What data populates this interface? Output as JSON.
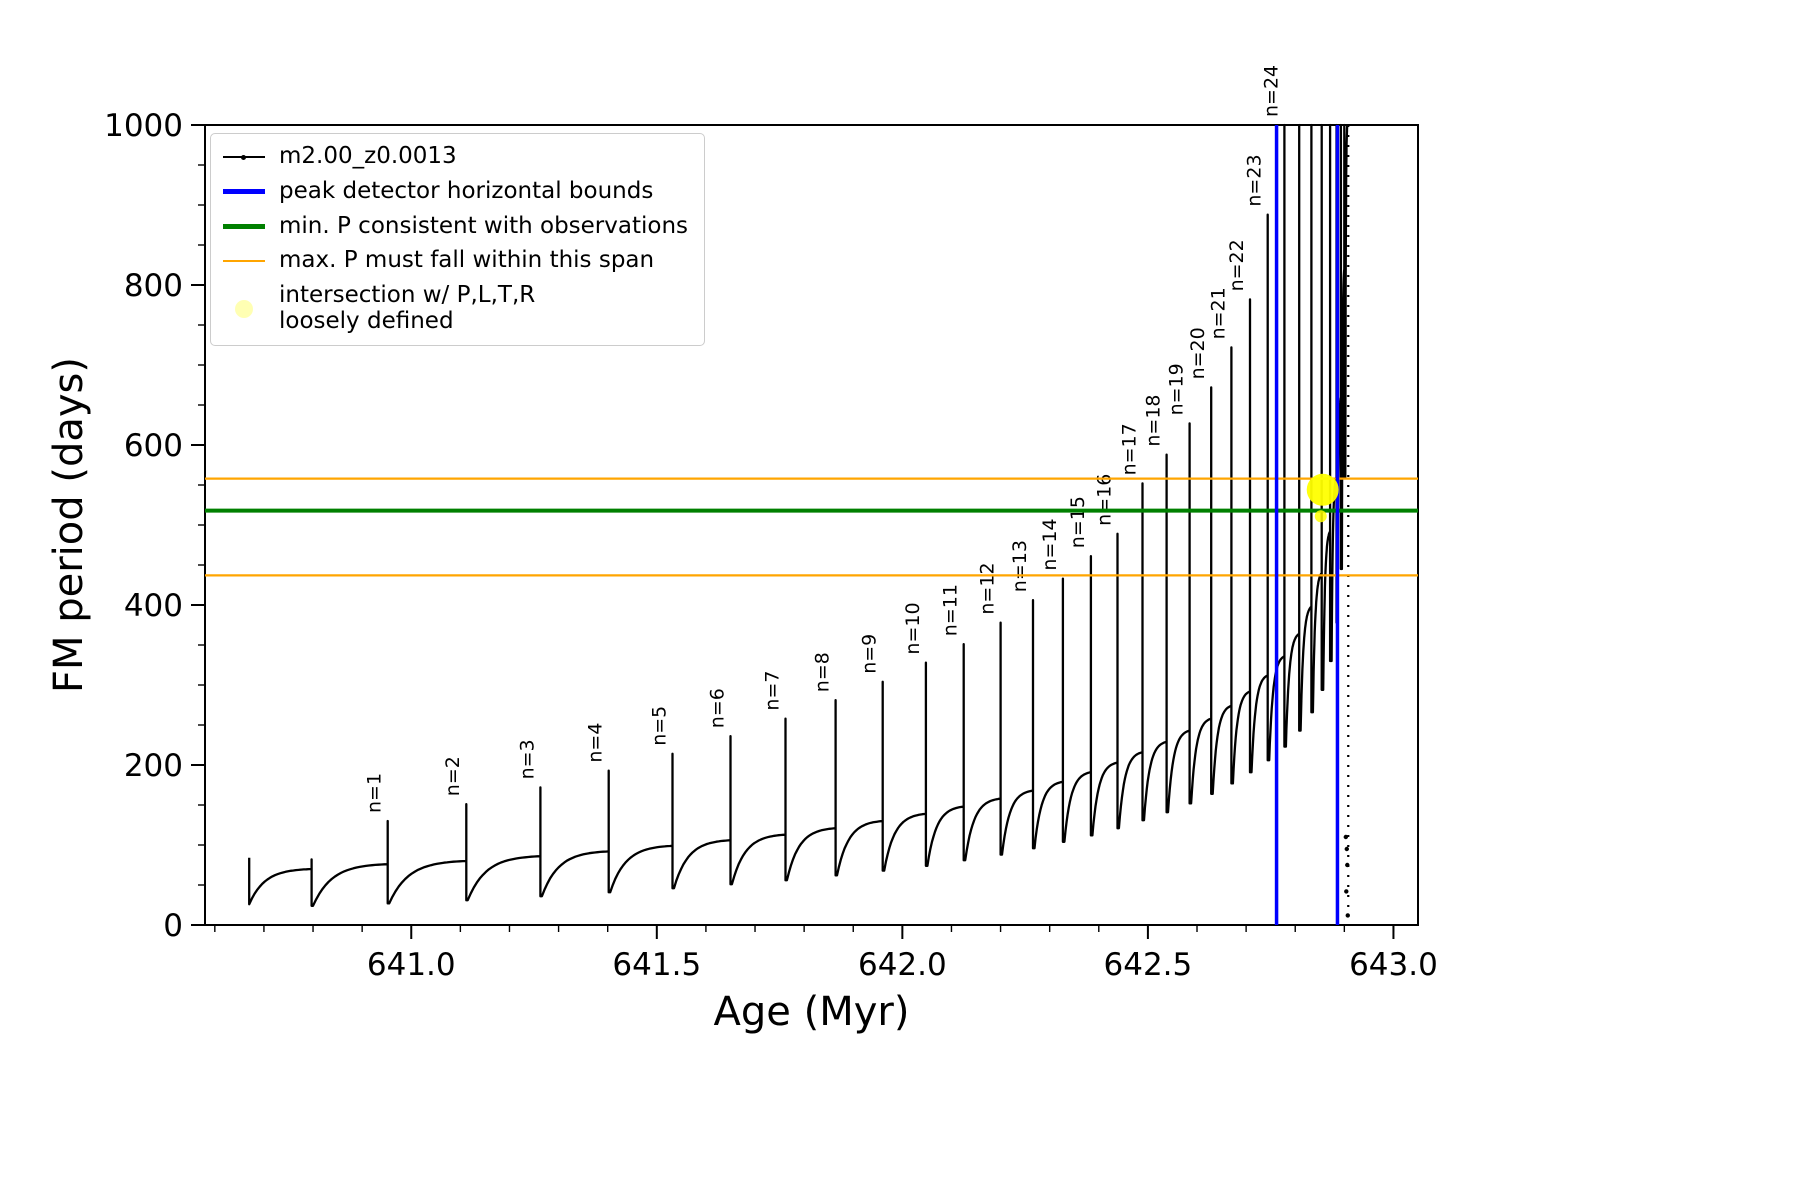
{
  "figure_title": "",
  "chart_data": {
    "type": "line",
    "title": "",
    "xlabel": "Age (Myr)",
    "ylabel": "FM period (days)",
    "xlim": [
      640.58,
      643.05
    ],
    "ylim": [
      0,
      1000
    ],
    "grid": false,
    "legend_position": "upper-left",
    "xticks": {
      "values": [
        641.0,
        641.5,
        642.0,
        642.5,
        643.0
      ],
      "labels": [
        "641.0",
        "641.5",
        "642.0",
        "642.5",
        "643.0"
      ],
      "minor_step": 0.1
    },
    "yticks": {
      "values": [
        0,
        200,
        400,
        600,
        800,
        1000
      ],
      "labels": [
        "0",
        "200",
        "400",
        "600",
        "800",
        "1000"
      ],
      "minor_step": 50
    },
    "series": {
      "name": "m2.00_z0.0013",
      "color": "#000000",
      "start_spike": {
        "x": 640.67,
        "y_top": 84,
        "y_bottom": 26
      },
      "teeth": [
        {
          "x0": 640.67,
          "y0": 26,
          "x1": 640.797,
          "y1": 70,
          "peak": 82,
          "label": null
        },
        {
          "x0": 640.8,
          "y0": 24,
          "x1": 640.952,
          "y1": 76,
          "peak": 130,
          "label": "n=1"
        },
        {
          "x0": 640.955,
          "y0": 27,
          "x1": 641.112,
          "y1": 80,
          "peak": 151,
          "label": "n=2"
        },
        {
          "x0": 641.115,
          "y0": 31,
          "x1": 641.263,
          "y1": 86,
          "peak": 172,
          "label": "n=3"
        },
        {
          "x0": 641.266,
          "y0": 36,
          "x1": 641.402,
          "y1": 92,
          "peak": 193,
          "label": "n=4"
        },
        {
          "x0": 641.405,
          "y0": 41,
          "x1": 641.532,
          "y1": 99,
          "peak": 214,
          "label": "n=5"
        },
        {
          "x0": 641.535,
          "y0": 46,
          "x1": 641.65,
          "y1": 106,
          "peak": 236,
          "label": "n=6"
        },
        {
          "x0": 641.653,
          "y0": 51,
          "x1": 641.762,
          "y1": 113,
          "peak": 258,
          "label": "n=7"
        },
        {
          "x0": 641.765,
          "y0": 56,
          "x1": 641.864,
          "y1": 121,
          "peak": 281,
          "label": "n=8"
        },
        {
          "x0": 641.867,
          "y0": 62,
          "x1": 641.96,
          "y1": 130,
          "peak": 304,
          "label": "n=9"
        },
        {
          "x0": 641.963,
          "y0": 68,
          "x1": 642.048,
          "y1": 139,
          "peak": 328,
          "label": "n=10"
        },
        {
          "x0": 642.051,
          "y0": 74,
          "x1": 642.125,
          "y1": 148,
          "peak": 351,
          "label": "n=11"
        },
        {
          "x0": 642.128,
          "y0": 81,
          "x1": 642.2,
          "y1": 158,
          "peak": 378,
          "label": "n=12"
        },
        {
          "x0": 642.203,
          "y0": 88,
          "x1": 642.266,
          "y1": 168,
          "peak": 406,
          "label": "n=13"
        },
        {
          "x0": 642.269,
          "y0": 96,
          "x1": 642.327,
          "y1": 179,
          "peak": 433,
          "label": "n=14"
        },
        {
          "x0": 642.33,
          "y0": 104,
          "x1": 642.384,
          "y1": 191,
          "peak": 461,
          "label": "n=15"
        },
        {
          "x0": 642.387,
          "y0": 112,
          "x1": 642.438,
          "y1": 203,
          "peak": 489,
          "label": "n=16"
        },
        {
          "x0": 642.441,
          "y0": 121,
          "x1": 642.489,
          "y1": 216,
          "peak": 552,
          "label": "n=17"
        },
        {
          "x0": 642.492,
          "y0": 131,
          "x1": 642.538,
          "y1": 229,
          "peak": 588,
          "label": "n=18"
        },
        {
          "x0": 642.541,
          "y0": 141,
          "x1": 642.585,
          "y1": 243,
          "peak": 627,
          "label": "n=19"
        },
        {
          "x0": 642.588,
          "y0": 152,
          "x1": 642.629,
          "y1": 258,
          "peak": 672,
          "label": "n=20"
        },
        {
          "x0": 642.632,
          "y0": 164,
          "x1": 642.67,
          "y1": 274,
          "peak": 722,
          "label": "n=21"
        },
        {
          "x0": 642.673,
          "y0": 177,
          "x1": 642.708,
          "y1": 292,
          "peak": 782,
          "label": "n=22"
        },
        {
          "x0": 642.711,
          "y0": 191,
          "x1": 642.744,
          "y1": 312,
          "peak": 888,
          "label": "n=23"
        },
        {
          "x0": 642.747,
          "y0": 206,
          "x1": 642.778,
          "y1": 336,
          "peak": 1010,
          "label": "n=24"
        },
        {
          "x0": 642.781,
          "y0": 223,
          "x1": 642.808,
          "y1": 364,
          "peak": 1010,
          "label": null
        },
        {
          "x0": 642.811,
          "y0": 243,
          "x1": 642.833,
          "y1": 398,
          "peak": 1010,
          "label": null
        },
        {
          "x0": 642.836,
          "y0": 266,
          "x1": 642.854,
          "y1": 440,
          "peak": 1010,
          "label": null
        },
        {
          "x0": 642.857,
          "y0": 294,
          "x1": 642.871,
          "y1": 492,
          "peak": 1010,
          "label": null
        },
        {
          "x0": 642.874,
          "y0": 330,
          "x1": 642.884,
          "y1": 560,
          "peak": 1010,
          "label": null
        },
        {
          "x0": 642.886,
          "y0": 378,
          "x1": 642.893,
          "y1": 660,
          "peak": 1010,
          "label": null
        },
        {
          "x0": 642.895,
          "y0": 445,
          "x1": 642.9,
          "y1": 820,
          "peak": 1010,
          "label": null
        },
        {
          "x0": 642.902,
          "y0": 560,
          "x1": 642.906,
          "y1": 1000,
          "peak": null,
          "label": null
        }
      ],
      "end_drop": {
        "x": 642.908,
        "y_top": 1000,
        "y_bottom": 5
      },
      "end_dots": [
        {
          "x": 642.905,
          "y": 95
        },
        {
          "x": 642.906,
          "y": 75
        },
        {
          "x": 642.904,
          "y": 42
        },
        {
          "x": 642.907,
          "y": 12
        },
        {
          "x": 642.903,
          "y": 110
        }
      ]
    },
    "vlines": {
      "label": "peak detector horizontal bounds",
      "color": "#0000ff",
      "xs": [
        642.762,
        642.886
      ],
      "width": 3.5
    },
    "hline_min": {
      "label": "min. P consistent with observations",
      "color": "#008000",
      "y": 518,
      "width": 4
    },
    "hlines_span": {
      "label": "max. P must fall within this span",
      "color": "#ffa500",
      "ys": [
        437,
        558
      ],
      "width": 2.2
    },
    "intersection": {
      "label": "intersection w/ P,L,T,R\nloosely defined",
      "color": "#ffff00",
      "points": [
        {
          "x": 642.856,
          "y": 544,
          "r": 16,
          "opacity": 0.95
        },
        {
          "x": 642.852,
          "y": 511,
          "r": 6,
          "opacity": 0.85
        }
      ]
    }
  },
  "legend": {
    "items": [
      {
        "label": "m2.00_z0.0013",
        "swatch": "line-dot",
        "color": "#000000"
      },
      {
        "label": "peak detector horizontal bounds",
        "swatch": "line-thick",
        "color": "#0000ff"
      },
      {
        "label": "min. P consistent with observations",
        "swatch": "line-thick",
        "color": "#008000"
      },
      {
        "label": "max. P must fall within this span",
        "swatch": "line",
        "color": "#ffa500"
      },
      {
        "label": "intersection w/ P,L,T,R\nloosely defined",
        "swatch": "dot",
        "color": "#ffff99"
      }
    ]
  }
}
